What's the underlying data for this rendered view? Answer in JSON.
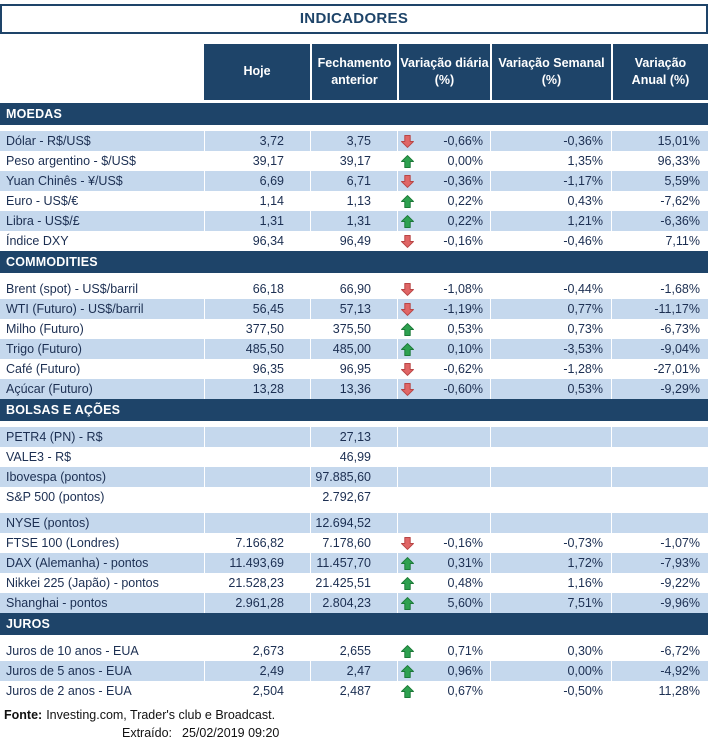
{
  "title": "INDICADORES",
  "columns": [
    "Hoje",
    "Fechamento\nanterior",
    "Variação diária\n(%)",
    "Variação Semanal\n(%)",
    "Variação\nAnual (%)"
  ],
  "sections": [
    {
      "name": "MOEDAS",
      "rows": [
        {
          "label": "Dólar - R$/US$",
          "hoje": "3,72",
          "fechamento": "3,75",
          "arrow": "down",
          "diaria": "-0,66%",
          "semanal": "-0,36%",
          "anual": "15,01%",
          "shaded": true
        },
        {
          "label": "Peso argentino - $/US$",
          "hoje": "39,17",
          "fechamento": "39,17",
          "arrow": "up",
          "diaria": "0,00%",
          "semanal": "1,35%",
          "anual": "96,33%",
          "shaded": false
        },
        {
          "label": "Yuan Chinês - ¥/US$",
          "hoje": "6,69",
          "fechamento": "6,71",
          "arrow": "down",
          "diaria": "-0,36%",
          "semanal": "-1,17%",
          "anual": "5,59%",
          "shaded": true
        },
        {
          "label": "Euro - US$/€",
          "hoje": "1,14",
          "fechamento": "1,13",
          "arrow": "up",
          "diaria": "0,22%",
          "semanal": "0,43%",
          "anual": "-7,62%",
          "shaded": false
        },
        {
          "label": "Libra - US$/£",
          "hoje": "1,31",
          "fechamento": "1,31",
          "arrow": "up",
          "diaria": "0,22%",
          "semanal": "1,21%",
          "anual": "-6,36%",
          "shaded": true
        },
        {
          "label": "Índice DXY",
          "hoje": "96,34",
          "fechamento": "96,49",
          "arrow": "down",
          "diaria": "-0,16%",
          "semanal": "-0,46%",
          "anual": "7,11%",
          "shaded": false
        }
      ]
    },
    {
      "name": "COMMODITIES",
      "rows": [
        {
          "label": "Brent (spot) - US$/barril",
          "hoje": "66,18",
          "fechamento": "66,90",
          "arrow": "down",
          "diaria": "-1,08%",
          "semanal": "-0,44%",
          "anual": "-1,68%",
          "shaded": false
        },
        {
          "label": "WTI (Futuro) - US$/barril",
          "hoje": "56,45",
          "fechamento": "57,13",
          "arrow": "down",
          "diaria": "-1,19%",
          "semanal": "0,77%",
          "anual": "-11,17%",
          "shaded": true
        },
        {
          "label": "Milho (Futuro)",
          "hoje": "377,50",
          "fechamento": "375,50",
          "arrow": "up",
          "diaria": "0,53%",
          "semanal": "0,73%",
          "anual": "-6,73%",
          "shaded": false
        },
        {
          "label": "Trigo (Futuro)",
          "hoje": "485,50",
          "fechamento": "485,00",
          "arrow": "up",
          "diaria": "0,10%",
          "semanal": "-3,53%",
          "anual": "-9,04%",
          "shaded": true
        },
        {
          "label": "Café (Futuro)",
          "hoje": "96,35",
          "fechamento": "96,95",
          "arrow": "down",
          "diaria": "-0,62%",
          "semanal": "-1,28%",
          "anual": "-27,01%",
          "shaded": false
        },
        {
          "label": "Açúcar (Futuro)",
          "hoje": "13,28",
          "fechamento": "13,36",
          "arrow": "down",
          "diaria": "-0,60%",
          "semanal": "0,53%",
          "anual": "-9,29%",
          "shaded": true
        }
      ]
    },
    {
      "name": "BOLSAS E AÇÕES",
      "rows": [
        {
          "label": "PETR4 (PN) - R$",
          "hoje": "",
          "fechamento": "27,13",
          "arrow": null,
          "diaria": "",
          "semanal": "",
          "anual": "",
          "shaded": true
        },
        {
          "label": "VALE3 - R$",
          "hoje": "",
          "fechamento": "46,99",
          "arrow": null,
          "diaria": "",
          "semanal": "",
          "anual": "",
          "shaded": false
        },
        {
          "label": "Ibovespa (pontos)",
          "hoje": "",
          "fechamento": "97.885,60",
          "arrow": null,
          "diaria": "",
          "semanal": "",
          "anual": "",
          "shaded": true
        },
        {
          "label": "S&P 500 (pontos)",
          "hoje": "",
          "fechamento": "2.792,67",
          "arrow": null,
          "diaria": "",
          "semanal": "",
          "anual": "",
          "shaded": false,
          "spacer_after": true
        },
        {
          "label": "NYSE (pontos)",
          "hoje": "",
          "fechamento": "12.694,52",
          "arrow": null,
          "diaria": "",
          "semanal": "",
          "anual": "",
          "shaded": true
        },
        {
          "label": "FTSE 100 (Londres)",
          "hoje": "7.166,82",
          "fechamento": "7.178,60",
          "arrow": "down",
          "diaria": "-0,16%",
          "semanal": "-0,73%",
          "anual": "-1,07%",
          "shaded": false
        },
        {
          "label": "DAX (Alemanha) - pontos",
          "hoje": "11.493,69",
          "fechamento": "11.457,70",
          "arrow": "up",
          "diaria": "0,31%",
          "semanal": "1,72%",
          "anual": "-7,93%",
          "shaded": true
        },
        {
          "label": "Nikkei 225 (Japão) - pontos",
          "hoje": "21.528,23",
          "fechamento": "21.425,51",
          "arrow": "up",
          "diaria": "0,48%",
          "semanal": "1,16%",
          "anual": "-9,22%",
          "shaded": false
        },
        {
          "label": "Shanghai - pontos",
          "hoje": "2.961,28",
          "fechamento": "2.804,23",
          "arrow": "up",
          "diaria": "5,60%",
          "semanal": "7,51%",
          "anual": "-9,96%",
          "shaded": true
        }
      ]
    },
    {
      "name": "JUROS",
      "rows": [
        {
          "label": "Juros de 10 anos - EUA",
          "hoje": "2,673",
          "fechamento": "2,655",
          "arrow": "up",
          "diaria": "0,71%",
          "semanal": "0,30%",
          "anual": "-6,72%",
          "shaded": false
        },
        {
          "label": "Juros de 5 anos - EUA",
          "hoje": "2,49",
          "fechamento": "2,47",
          "arrow": "up",
          "diaria": "0,96%",
          "semanal": "0,00%",
          "anual": "-4,92%",
          "shaded": true
        },
        {
          "label": "Juros de 2 anos - EUA",
          "hoje": "2,504",
          "fechamento": "2,487",
          "arrow": "up",
          "diaria": "0,67%",
          "semanal": "-0,50%",
          "anual": "11,28%",
          "shaded": false
        }
      ]
    }
  ],
  "footer": {
    "fonte_label": "Fonte:",
    "fonte_text": "Investing.com, Trader's club e Broadcast.",
    "extraido_label": "Extraído:",
    "extraido_value": "25/02/2019 09:20"
  },
  "colors": {
    "navy": "#1E4469",
    "band": "#C5D8ED",
    "row_text": "#1C2F52",
    "arrow_up": "#2EA150",
    "arrow_up_stroke": "#1C7A39",
    "arrow_down": "#E06666",
    "arrow_down_stroke": "#B84545"
  }
}
